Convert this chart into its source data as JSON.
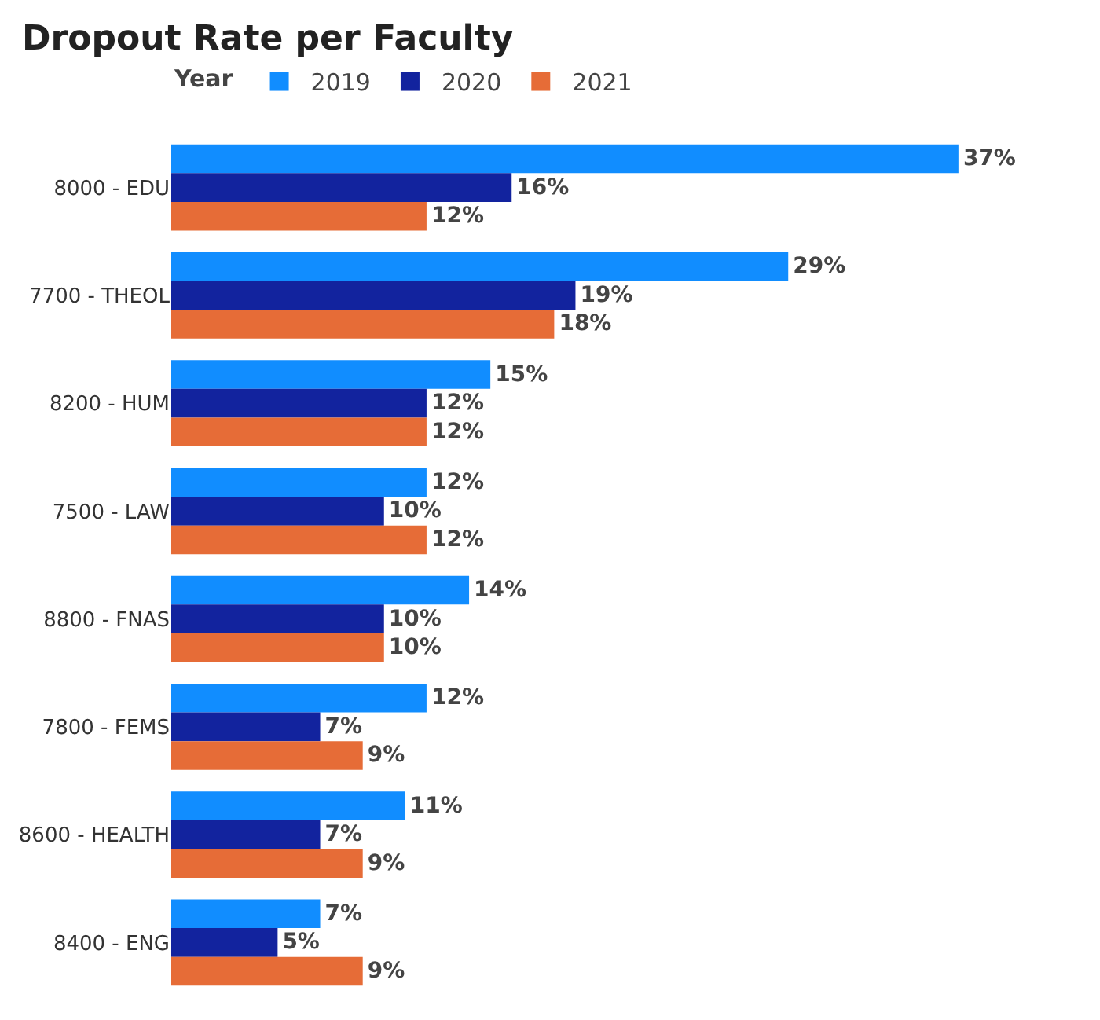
{
  "chart_data": {
    "type": "bar",
    "orientation": "horizontal",
    "title": "Dropout Rate per Faculty",
    "legend_title": "Year",
    "legend": "top left",
    "tick_labels": "y",
    "categories": [
      "8000 - EDU",
      "7700 - THEOL",
      "8200 - HUM",
      "7500 - LAW",
      "8800 - FNAS",
      "7800 - FEMS",
      "8600 - HEALTH",
      "8400 - ENG"
    ],
    "series": [
      {
        "name": "2019",
        "color": "#118dff",
        "values": [
          37,
          29,
          15,
          12,
          14,
          12,
          11,
          7
        ],
        "value_labels": [
          "37%",
          "29%",
          "15%",
          "12%",
          "14%",
          "12%",
          "11%",
          "7%"
        ]
      },
      {
        "name": "2020",
        "color": "#12239e",
        "values": [
          16,
          19,
          12,
          10,
          10,
          7,
          7,
          5
        ],
        "value_labels": [
          "16%",
          "19%",
          "12%",
          "10%",
          "10%",
          "7%",
          "7%",
          "5%"
        ]
      },
      {
        "name": "2021",
        "color": "#e66c37",
        "values": [
          12,
          18,
          12,
          12,
          10,
          9,
          9,
          9
        ],
        "value_labels": [
          "12%",
          "18%",
          "12%",
          "12%",
          "10%",
          "9%",
          "9%",
          "9%"
        ]
      }
    ]
  }
}
